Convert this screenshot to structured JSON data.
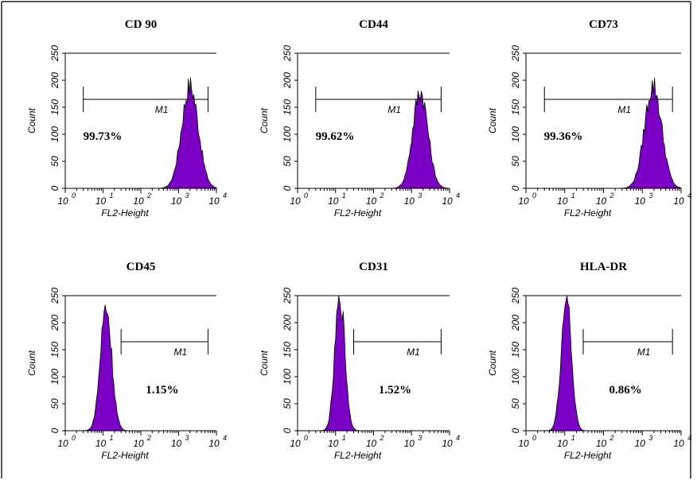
{
  "chart_data": [
    {
      "type": "area",
      "title": "CD 90",
      "xlabel": "FL2-Height",
      "ylabel": "Count",
      "x_scale": "log",
      "xlim": [
        1,
        10000
      ],
      "ylim": [
        0,
        250
      ],
      "yticks": [
        "0",
        "50",
        "100",
        "150",
        "200",
        "250"
      ],
      "xtick_base": "10",
      "xtick_exps": [
        "0",
        "1",
        "2",
        "3",
        "4"
      ],
      "gate_label": "M1",
      "gate_range": [
        3,
        6000
      ],
      "gate_percent": "99.73%",
      "peak_center": 2000,
      "peak_height": 190,
      "peak_width_decades": 0.22
    },
    {
      "type": "area",
      "title": "CD44",
      "xlabel": "FL2-Height",
      "ylabel": "Count",
      "x_scale": "log",
      "xlim": [
        1,
        10000
      ],
      "ylim": [
        0,
        250
      ],
      "yticks": [
        "0",
        "50",
        "100",
        "150",
        "200",
        "250"
      ],
      "xtick_base": "10",
      "xtick_exps": [
        "0",
        "1",
        "2",
        "3",
        "4"
      ],
      "gate_label": "M1",
      "gate_range": [
        3,
        6000
      ],
      "gate_percent": "99.62%",
      "peak_center": 1700,
      "peak_height": 180,
      "peak_width_decades": 0.2
    },
    {
      "type": "area",
      "title": "CD73",
      "xlabel": "FL2-Height",
      "ylabel": "Count",
      "x_scale": "log",
      "xlim": [
        1,
        10000
      ],
      "ylim": [
        0,
        250
      ],
      "yticks": [
        "0",
        "50",
        "100",
        "150",
        "200",
        "250"
      ],
      "xtick_base": "10",
      "xtick_exps": [
        "0",
        "1",
        "2",
        "3",
        "4"
      ],
      "gate_label": "M1",
      "gate_range": [
        3,
        6000
      ],
      "gate_percent": "99.36%",
      "peak_center": 1900,
      "peak_height": 190,
      "peak_width_decades": 0.22
    },
    {
      "type": "area",
      "title": "CD45",
      "xlabel": "FL2-Height",
      "ylabel": "Count",
      "x_scale": "log",
      "xlim": [
        1,
        10000
      ],
      "ylim": [
        0,
        250
      ],
      "yticks": [
        "0",
        "50",
        "100",
        "150",
        "200",
        "250"
      ],
      "xtick_base": "10",
      "xtick_exps": [
        "0",
        "1",
        "2",
        "3",
        "4"
      ],
      "gate_label": "M1",
      "gate_range": [
        30,
        6000
      ],
      "gate_percent": "1.15%",
      "peak_center": 12,
      "peak_height": 230,
      "peak_width_decades": 0.15
    },
    {
      "type": "area",
      "title": "CD31",
      "xlabel": "FL2-Height",
      "ylabel": "Count",
      "x_scale": "log",
      "xlim": [
        1,
        10000
      ],
      "ylim": [
        0,
        250
      ],
      "yticks": [
        "0",
        "50",
        "100",
        "150",
        "200",
        "250"
      ],
      "xtick_base": "10",
      "xtick_exps": [
        "0",
        "1",
        "2",
        "3",
        "4"
      ],
      "gate_label": "M1",
      "gate_range": [
        30,
        6000
      ],
      "gate_percent": "1.52%",
      "peak_center": 13,
      "peak_height": 250,
      "peak_width_decades": 0.13
    },
    {
      "type": "area",
      "title": "HLA-DR",
      "xlabel": "FL2-Height",
      "ylabel": "Count",
      "x_scale": "log",
      "xlim": [
        1,
        10000
      ],
      "ylim": [
        0,
        250
      ],
      "yticks": [
        "0",
        "50",
        "100",
        "150",
        "200",
        "250"
      ],
      "xtick_base": "10",
      "xtick_exps": [
        "0",
        "1",
        "2",
        "3",
        "4"
      ],
      "gate_label": "M1",
      "gate_range": [
        30,
        6000
      ],
      "gate_percent": "0.86%",
      "peak_center": 11,
      "peak_height": 250,
      "peak_width_decades": 0.13
    }
  ]
}
